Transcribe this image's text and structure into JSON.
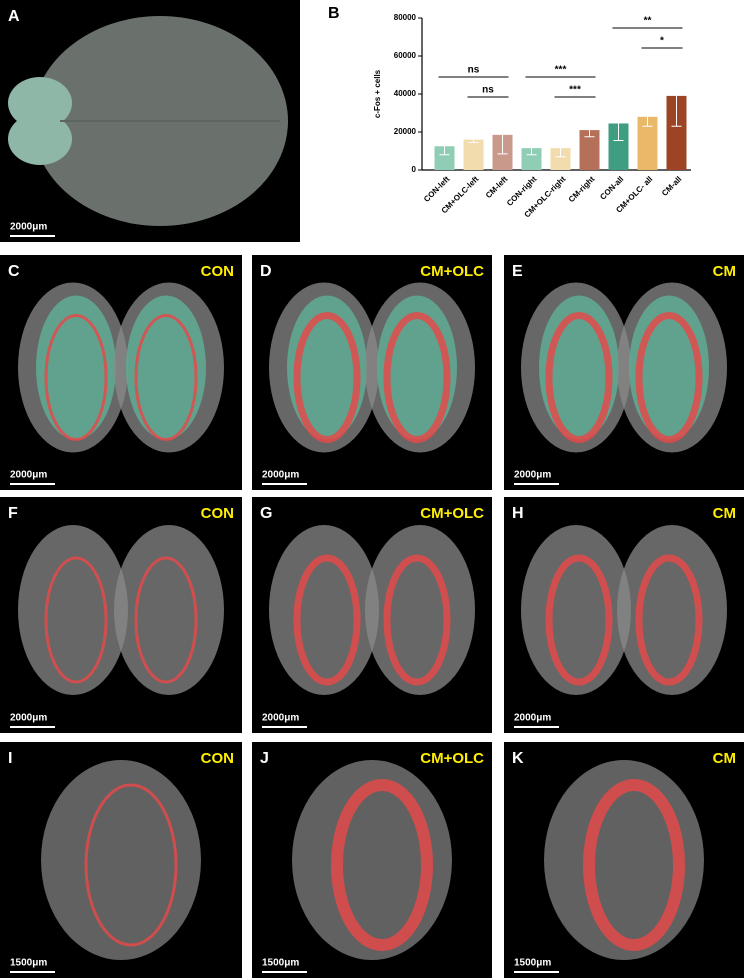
{
  "panels": [
    {
      "label": "A",
      "scale_bar": "2000μm"
    },
    {
      "label": "C",
      "condition": "CON",
      "scale_bar": "2000μm"
    },
    {
      "label": "D",
      "condition": "CM+OLC",
      "scale_bar": "2000μm"
    },
    {
      "label": "E",
      "condition": "CM",
      "scale_bar": "2000μm"
    },
    {
      "label": "F",
      "condition": "CON",
      "scale_bar": "2000μm"
    },
    {
      "label": "G",
      "condition": "CM+OLC",
      "scale_bar": "2000μm"
    },
    {
      "label": "H",
      "condition": "CM",
      "scale_bar": "2000μm"
    },
    {
      "label": "I",
      "condition": "CON",
      "scale_bar": "1500μm"
    },
    {
      "label": "J",
      "condition": "CM+OLC",
      "scale_bar": "1500μm"
    },
    {
      "label": "K",
      "condition": "CM",
      "scale_bar": "1500μm"
    }
  ],
  "chart_data": {
    "type": "bar",
    "panel": "B",
    "ylabel": "c-Fos + cells",
    "categories": [
      "CON-left",
      "CM+OLC-left",
      "CM-left",
      "CON-right",
      "CM+OLC-right",
      "CM-right",
      "CON-all",
      "CM+OLC- all",
      "CM-all"
    ],
    "values": [
      12500,
      16000,
      18500,
      11500,
      11500,
      21000,
      24500,
      28000,
      39000
    ],
    "errors": [
      4500,
      1500,
      10000,
      3500,
      4500,
      3500,
      9000,
      5000,
      16000
    ],
    "colors": [
      "#8fcdb5",
      "#f2dcae",
      "#c99a8c",
      "#8fcdb5",
      "#f2dcae",
      "#b5705a",
      "#3f9e82",
      "#e9b869",
      "#9c4424"
    ],
    "ylim": [
      0,
      80000
    ],
    "yticks": [
      0,
      20000,
      40000,
      60000,
      80000
    ],
    "annotations": [
      {
        "text": "ns",
        "between": [
          "CON-left",
          "CM-left"
        ]
      },
      {
        "text": "ns",
        "between": [
          "CM+OLC-left",
          "CM-left"
        ]
      },
      {
        "text": "***",
        "between": [
          "CON-right",
          "CM-right"
        ]
      },
      {
        "text": "***",
        "between": [
          "CM+OLC-right",
          "CM-right"
        ]
      },
      {
        "text": "**",
        "between": [
          "CON-all",
          "CM-all"
        ]
      },
      {
        "text": "*",
        "between": [
          "CM+OLC- all",
          "CM-all"
        ]
      }
    ]
  }
}
